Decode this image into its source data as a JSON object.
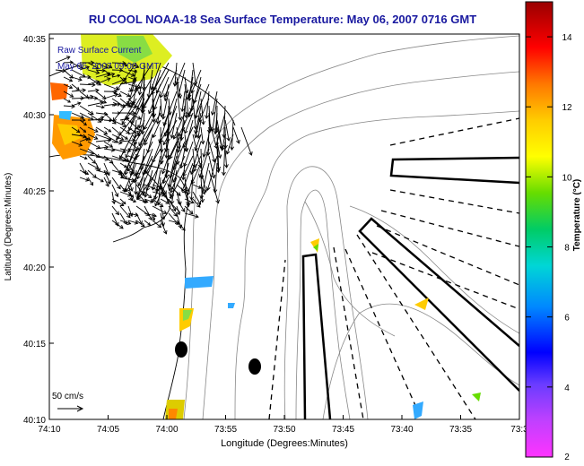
{
  "title": "RU COOL  NOAA-18  Sea Surface Temperature:  May 06, 2007 0716 GMT",
  "legend": {
    "line1": "Raw Surface Current",
    "line2": "May 06, 2007 09:00 GMT"
  },
  "axes": {
    "xlabel": "Longitude (Degrees:Minutes)",
    "ylabel": "Latitude (Degrees:Minutes)",
    "xticks": [
      "74:10",
      "74:05",
      "74:00",
      "73:55",
      "73:50",
      "73:45",
      "73:40",
      "73:35",
      "73:3"
    ],
    "yticks": [
      "40:35",
      "40:30",
      "40:25",
      "40:20",
      "40:15",
      "40:10"
    ]
  },
  "scale": {
    "label": "50 cm/s"
  },
  "colorbar": {
    "label": "Temperature (°C)",
    "ticks": [
      "14",
      "12",
      "10",
      "8",
      "6",
      "4",
      "2"
    ],
    "range": [
      2,
      15
    ]
  },
  "colors": {
    "title": "#1a1aa0",
    "legend_text": "#1a1aa0"
  }
}
